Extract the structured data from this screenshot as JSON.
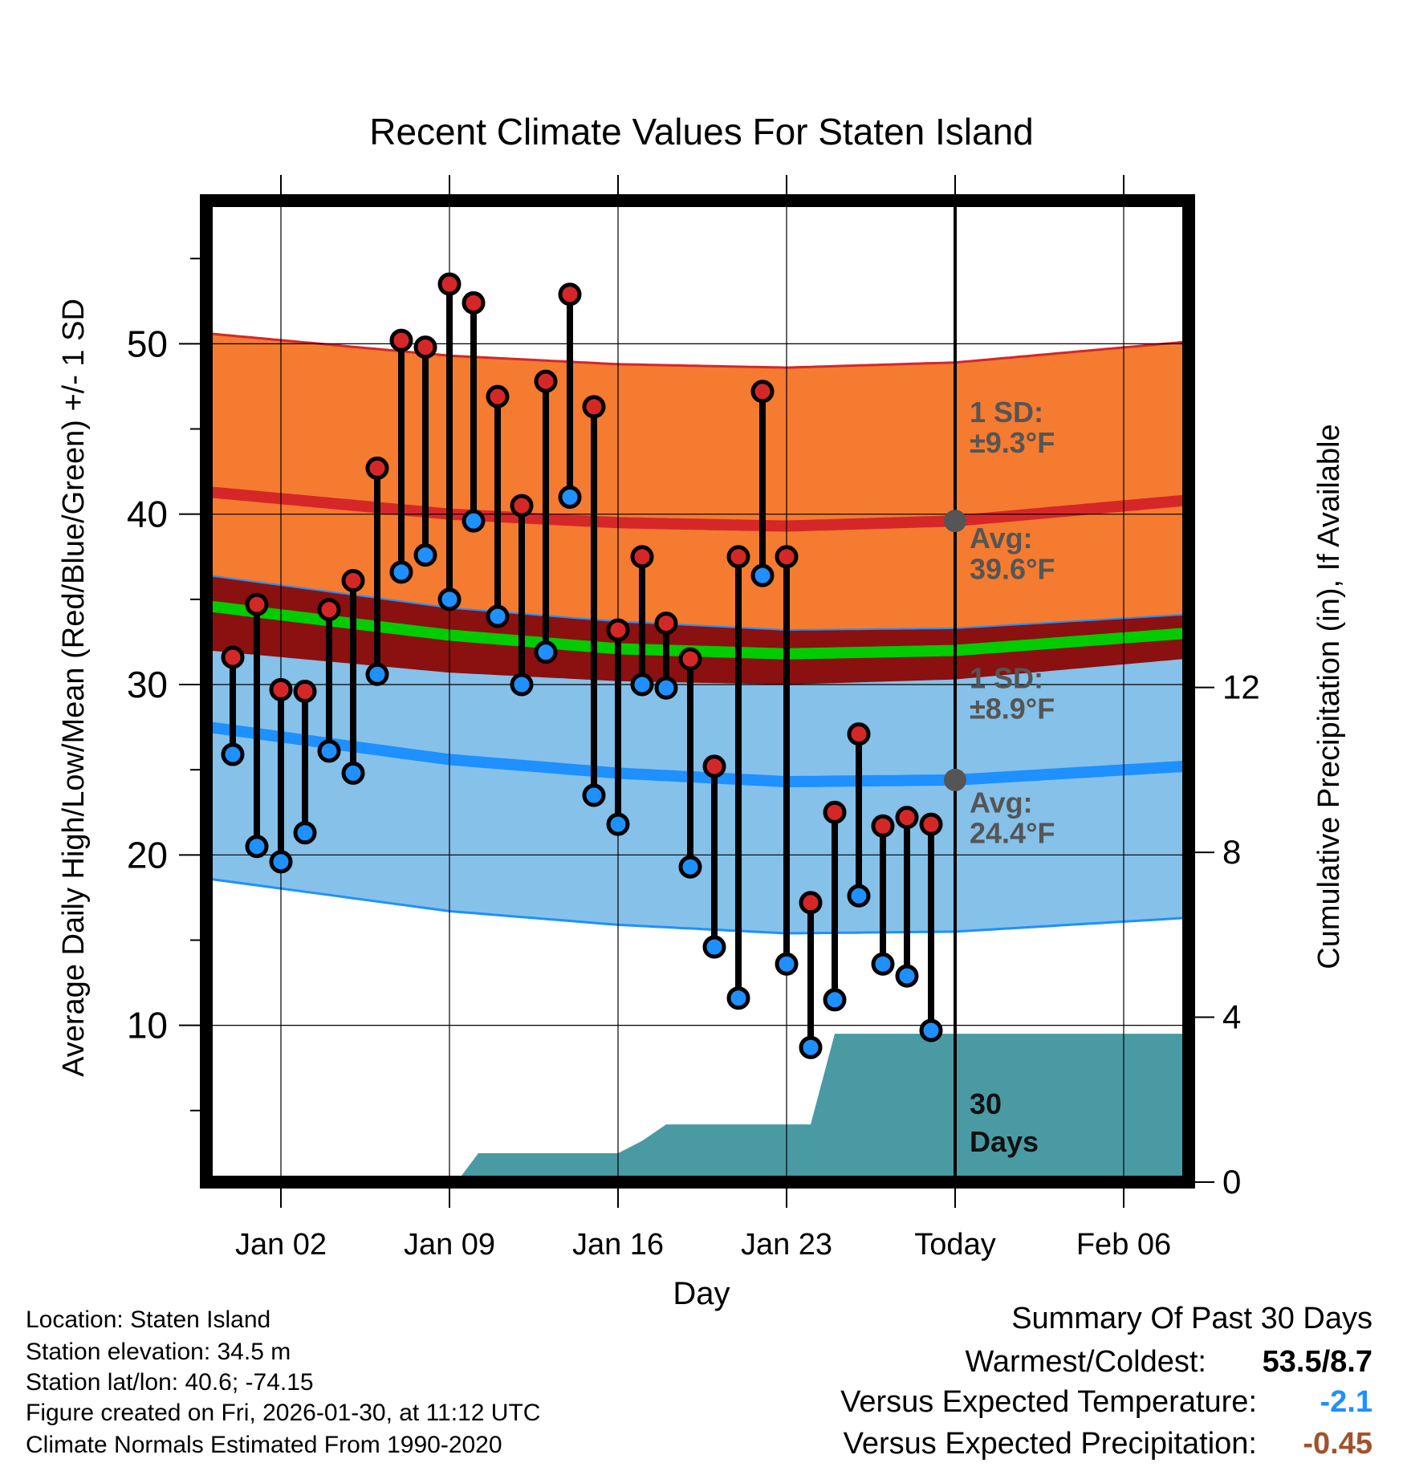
{
  "chart_data": {
    "type": "scatter",
    "title": "Recent Climate Values For Staten Island",
    "xlabel": "Day",
    "ylabel_left": "Average Daily High/Low/Mean (Red/Blue/Green) +/- 1 SD",
    "ylabel_right": "Cumulative Precipitation (in), If Available",
    "x_range": [
      -3.1,
      37.7
    ],
    "ylim_left": [
      0.8,
      58.4
    ],
    "ylim_right": [
      0,
      23.81
    ],
    "x_ticks": [
      {
        "x": 0,
        "label": "Jan 02"
      },
      {
        "x": 7,
        "label": "Jan 09"
      },
      {
        "x": 14,
        "label": "Jan 16"
      },
      {
        "x": 21,
        "label": "Jan 23"
      },
      {
        "x": 28,
        "label": "Today"
      },
      {
        "x": 35,
        "label": "Feb 06"
      }
    ],
    "y_ticks_left": [
      10,
      20,
      30,
      40,
      50
    ],
    "y_ticks_right": [
      0,
      4,
      8,
      12
    ],
    "today_x": 28,
    "days": [
      -2,
      -1,
      0,
      1,
      2,
      3,
      4,
      5,
      6,
      7,
      8,
      9,
      10,
      11,
      12,
      13,
      14,
      15,
      16,
      17,
      18,
      19,
      20,
      21,
      22,
      23,
      24,
      25,
      26,
      27
    ],
    "highs": [
      31.6,
      34.7,
      29.7,
      29.6,
      34.4,
      36.1,
      42.7,
      50.2,
      49.8,
      53.5,
      52.4,
      46.9,
      40.5,
      47.8,
      52.9,
      46.3,
      33.2,
      37.5,
      33.6,
      31.5,
      25.2,
      37.5,
      47.2,
      37.5,
      17.2,
      22.5,
      27.1,
      21.7,
      22.2,
      21.8
    ],
    "lows": [
      25.9,
      20.5,
      19.6,
      21.3,
      26.1,
      24.8,
      30.6,
      36.6,
      37.6,
      35.0,
      39.6,
      34.0,
      30.0,
      31.9,
      41.0,
      23.5,
      21.8,
      30.0,
      29.8,
      19.3,
      14.6,
      11.6,
      36.4,
      13.6,
      8.7,
      11.5,
      17.6,
      13.6,
      12.9,
      9.7
    ],
    "normal_high": {
      "x": [
        -3,
        7,
        14,
        21,
        28,
        37.5
      ],
      "mean": [
        41.3,
        40.0,
        39.5,
        39.3,
        39.6,
        40.8
      ],
      "sd": [
        9.3,
        9.3,
        9.3,
        9.3,
        9.3,
        9.3
      ]
    },
    "normal_low": {
      "x": [
        -3,
        7,
        14,
        21,
        28,
        37.5
      ],
      "mean": [
        27.5,
        25.6,
        24.8,
        24.3,
        24.4,
        25.2
      ],
      "sd": [
        8.9,
        8.9,
        8.9,
        8.9,
        8.9,
        8.9
      ]
    },
    "normal_mean": {
      "x": [
        -3,
        7,
        14,
        21,
        28,
        37.5
      ],
      "mean": [
        34.6,
        32.9,
        32.1,
        31.8,
        32.0,
        33.0
      ]
    },
    "precip": {
      "x": [
        7.3,
        8.2,
        14.0,
        15.0,
        16.0,
        21.0,
        22.0,
        23.0,
        37.7
      ],
      "values": [
        0,
        0.7,
        0.7,
        1.0,
        1.4,
        1.4,
        1.4,
        3.6,
        3.6
      ]
    },
    "annotations": {
      "high_sd_line1": "1 SD:",
      "high_sd_line2": "±9.3°F",
      "high_avg_line1": "Avg:",
      "high_avg_line2": "39.6°F",
      "low_sd_line1": "1 SD:",
      "low_sd_line2": "±8.9°F",
      "low_avg_line1": "Avg:",
      "low_avg_line2": "24.4°F",
      "window_line1": "30",
      "window_line2": "Days"
    }
  },
  "footer": {
    "location": "Location: Staten Island",
    "elevation": "Station elevation: 34.5 m",
    "latlon": "Station lat/lon: 40.6; -74.15",
    "created": "Figure created on Fri, 2026-01-30, at 11:12 UTC",
    "normals": "Climate Normals Estimated From 1990-2020"
  },
  "summary": {
    "title": "Summary Of Past 30 Days",
    "warm_cold_label": "Warmest/Coldest:",
    "warm_cold_value": "53.5/8.7",
    "temp_label": "Versus Expected Temperature:",
    "temp_value": "-2.1",
    "precip_label": "Versus Expected Precipitation:",
    "precip_value": "-0.45"
  },
  "colors": {
    "high_band": "#f47b30",
    "high_line": "#d62728",
    "low_band": "#85c1e9",
    "low_line": "#1e90ff",
    "mean_line": "#00cc00",
    "mean_band": "#8b1010",
    "precip": "#4a9aa4",
    "high_dot": "#d62728",
    "low_dot": "#1e90ff",
    "annotation": "#555555",
    "temp_value": "#1e90ff",
    "precip_value": "#a0522d"
  }
}
